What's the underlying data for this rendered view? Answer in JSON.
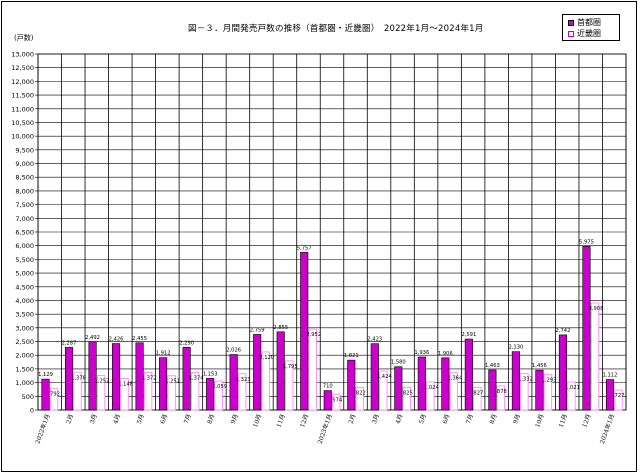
{
  "chart_data": {
    "type": "bar",
    "title": "図－３．月間発売戸数の推移（首都圏・近畿圏）　2022年1月～2024年1月",
    "ylabel": "(戸数)",
    "xlabel": "",
    "ylim": [
      0,
      13000
    ],
    "yticks": [
      0,
      500,
      1000,
      1500,
      2000,
      2500,
      3000,
      3500,
      4000,
      4500,
      5000,
      5500,
      6000,
      6500,
      7000,
      7500,
      8000,
      8500,
      9000,
      9500,
      10000,
      10500,
      11000,
      11500,
      12000,
      12500,
      13000
    ],
    "ytick_labels": [
      "0",
      "500",
      "1,000",
      "1,500",
      "2,000",
      "2,500",
      "3,000",
      "3,500",
      "4,000",
      "4,500",
      "5,000",
      "5,500",
      "6,000",
      "6,500",
      "7,000",
      "7,500",
      "8,000",
      "8,500",
      "9,000",
      "9,500",
      "10,000",
      "10,500",
      "11,000",
      "11,500",
      "12,000",
      "12,500",
      "13,000"
    ],
    "categories": [
      "2022年1月",
      "2月",
      "3月",
      "4月",
      "5月",
      "6月",
      "7月",
      "8月",
      "9月",
      "10月",
      "11月",
      "12月",
      "2023年1月",
      "2月",
      "3月",
      "4月",
      "5月",
      "6月",
      "7月",
      "8月",
      "9月",
      "10月",
      "11月",
      "12月",
      "2024年1月"
    ],
    "series": [
      {
        "name": "首都圏",
        "color": "#cc00cc",
        "values": [
          1129,
          2287,
          2492,
          2426,
          2455,
          1912,
          2290,
          1153,
          2026,
          2759,
          2855,
          5757,
          710,
          1821,
          2423,
          1580,
          1936,
          1906,
          2591,
          1463,
          2130,
          1456,
          2742,
          5975,
          1112
        ],
        "labels": [
          "1,129",
          "2,287",
          "2,492",
          "2,426",
          "2,455",
          "1,912",
          "2,290",
          "1,153",
          "2,026",
          "2,759",
          "2,855",
          "5,757",
          "710",
          "1,821",
          "2,423",
          "1,580",
          "1,936",
          "1,906",
          "2,591",
          "1,463",
          "2,130",
          "1,456",
          "2,742",
          "5,975",
          "1,112"
        ]
      },
      {
        "name": "近畿圏",
        "color": "#ff88ff",
        "values": [
          792,
          1378,
          1257,
          1148,
          1372,
          1251,
          1374,
          1059,
          1323,
          2120,
          1795,
          2952,
          574,
          822,
          1424,
          825,
          1024,
          1364,
          827,
          878,
          1332,
          1293,
          1021,
          3908,
          727
        ],
        "labels": [
          "792",
          "1,378",
          "1,257",
          "1,148",
          "1,372",
          "1,251",
          "1,374",
          "1,059",
          "1,323",
          "2,120",
          "1,795",
          "2,952",
          "574",
          "822",
          "1,424",
          "825",
          "1,024",
          "1,364",
          "827",
          "878",
          "1,332",
          "1,293",
          "1,021",
          "3,908",
          "727"
        ]
      }
    ],
    "grid": true,
    "legend_position": "top-right"
  }
}
